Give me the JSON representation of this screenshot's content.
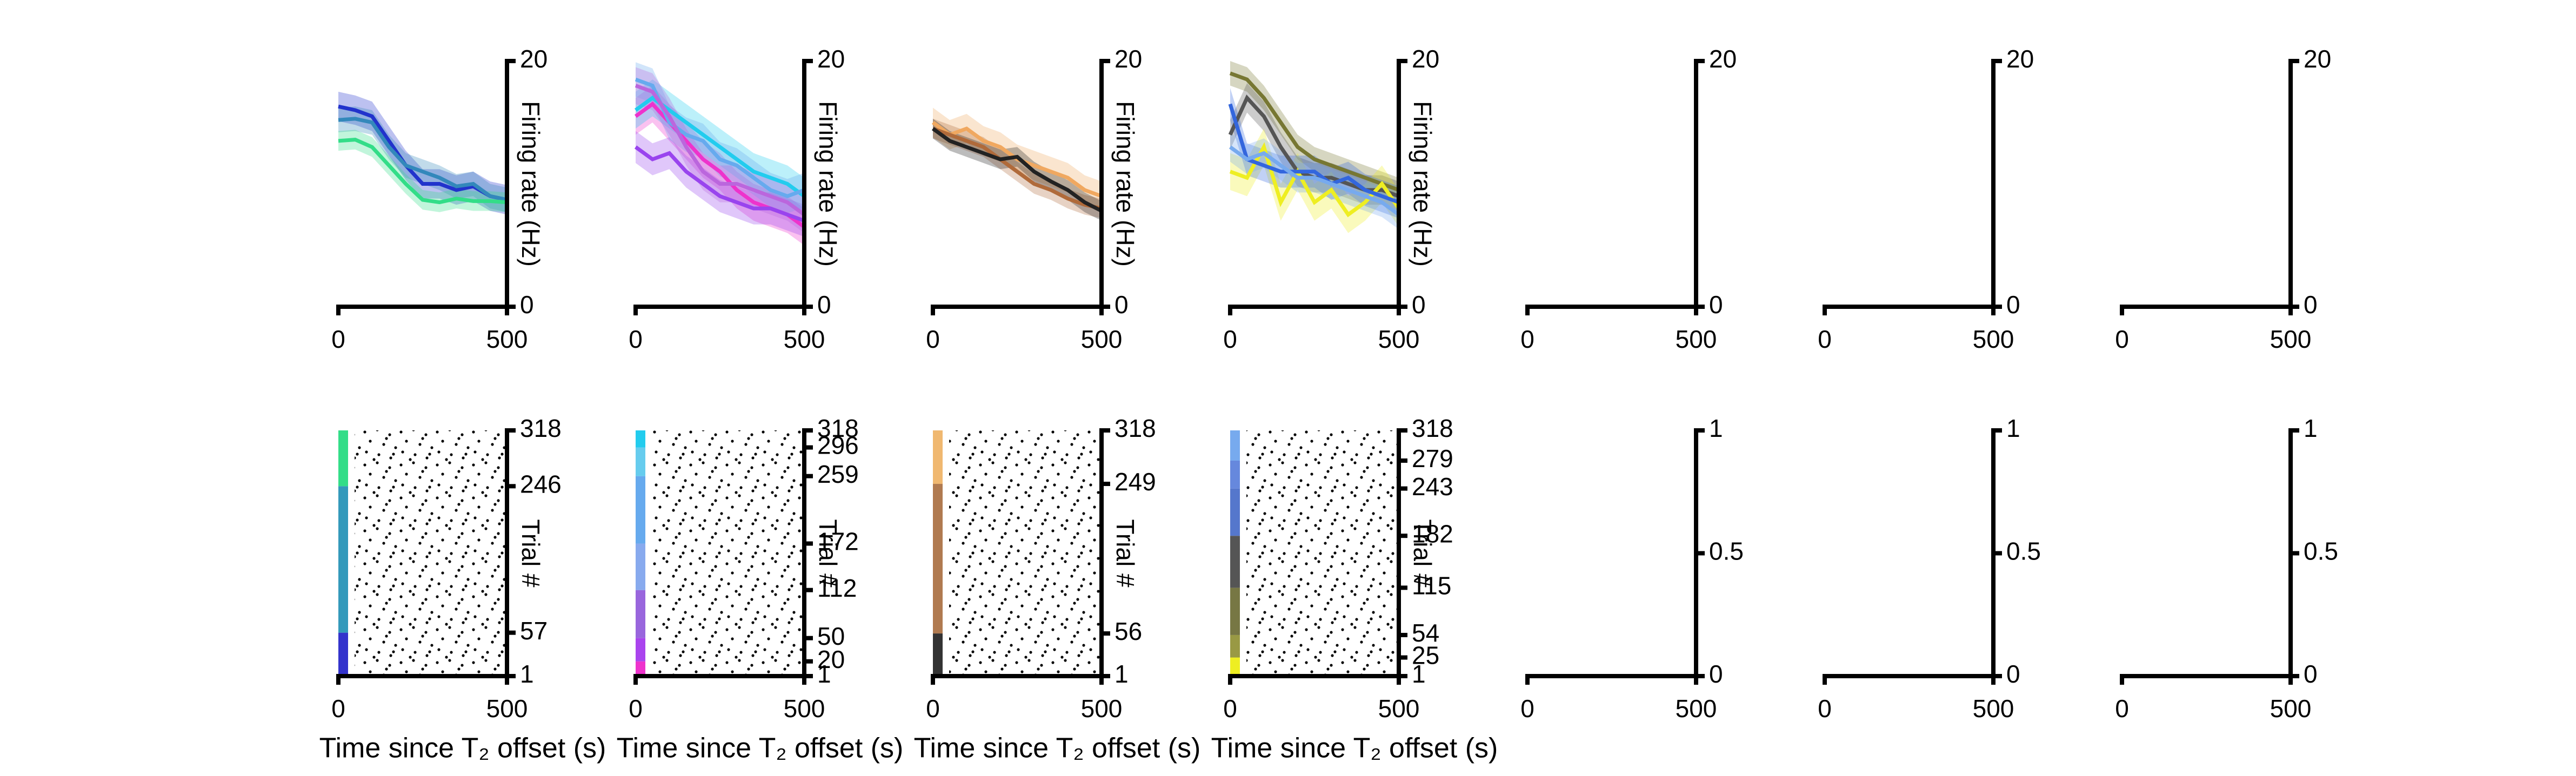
{
  "chart_data": [
    {
      "type": "line",
      "xlim": [
        0,
        500
      ],
      "xticks": [
        0,
        500
      ],
      "ylim": [
        0,
        20
      ],
      "yticks": [
        0,
        20
      ],
      "ylabel": "Firing rate (Hz)",
      "x": [
        0,
        50,
        100,
        150,
        200,
        250,
        300,
        350,
        400,
        450,
        500
      ],
      "series": [
        {
          "color": "#2233cc",
          "error": 1.2,
          "values": [
            16.3,
            16,
            15.5,
            13.5,
            11.5,
            10,
            10,
            9.5,
            9.8,
            9,
            8.7
          ]
        },
        {
          "color": "#3388bb",
          "error": 1,
          "values": [
            15.2,
            15.3,
            15,
            13,
            11.5,
            11,
            10.5,
            9.8,
            10,
            9,
            8.7
          ]
        },
        {
          "color": "#33dd88",
          "error": 0.8,
          "values": [
            13.5,
            13.6,
            13,
            11.5,
            10,
            8.7,
            8.5,
            8.8,
            8.6,
            8.6,
            8.5
          ]
        }
      ]
    },
    {
      "type": "line",
      "xlim": [
        0,
        500
      ],
      "xticks": [
        0,
        500
      ],
      "ylim": [
        0,
        20
      ],
      "yticks": [
        0,
        20
      ],
      "ylabel": "Firing rate (Hz)",
      "x": [
        0,
        50,
        100,
        150,
        200,
        250,
        300,
        350,
        400,
        450,
        500
      ],
      "series": [
        {
          "color": "#ee33cc",
          "error": 1.5,
          "values": [
            15.5,
            16.5,
            15,
            13.5,
            12,
            11,
            9.5,
            8.5,
            8,
            7.5,
            6.5
          ]
        },
        {
          "color": "#9944ee",
          "error": 1.3,
          "values": [
            13,
            12,
            12.5,
            11,
            10,
            9,
            8.5,
            8,
            8,
            7.5,
            7
          ]
        },
        {
          "color": "#22ccee",
          "error": 1.5,
          "values": [
            16,
            17,
            16,
            15,
            14,
            13,
            12,
            11,
            10.5,
            10,
            9
          ]
        },
        {
          "color": "#66aaee",
          "error": 1.4,
          "values": [
            18.5,
            18,
            15,
            14,
            13.5,
            12,
            11.5,
            10.5,
            9.5,
            9,
            9.5
          ]
        },
        {
          "color": "#bb66dd",
          "error": 1.5,
          "values": [
            18,
            17.5,
            15.5,
            13,
            11,
            10,
            10,
            9.5,
            9,
            8.5,
            7.5
          ]
        }
      ]
    },
    {
      "type": "line",
      "xlim": [
        0,
        500
      ],
      "xticks": [
        0,
        500
      ],
      "ylim": [
        0,
        20
      ],
      "yticks": [
        0,
        20
      ],
      "ylabel": "Firing rate (Hz)",
      "x": [
        0,
        50,
        100,
        150,
        200,
        250,
        300,
        350,
        400,
        450,
        500
      ],
      "series": [
        {
          "color": "#f0a860",
          "error": 1.2,
          "values": [
            15,
            14,
            14.5,
            13.5,
            13,
            12,
            11.5,
            11,
            10.5,
            9.5,
            9
          ]
        },
        {
          "color": "#b06a3a",
          "error": 0.8,
          "values": [
            14.5,
            14,
            13.5,
            13,
            12,
            11,
            10,
            9.5,
            8.8,
            8.3,
            8
          ]
        },
        {
          "color": "#222222",
          "error": 0.8,
          "values": [
            14.5,
            13.5,
            13,
            12.5,
            12,
            12.2,
            11,
            10.2,
            9.5,
            8.5,
            7.8
          ]
        }
      ]
    },
    {
      "type": "line",
      "xlim": [
        0,
        500
      ],
      "xticks": [
        0,
        500
      ],
      "ylim": [
        0,
        20
      ],
      "yticks": [
        0,
        20
      ],
      "ylabel": "Firing rate (Hz)",
      "x": [
        0,
        50,
        100,
        150,
        200,
        250,
        300,
        350,
        400,
        450,
        500
      ],
      "series": [
        {
          "color": "#777733",
          "error": 1,
          "values": [
            19,
            18.5,
            17,
            15,
            13,
            12,
            11.5,
            11,
            10.5,
            10,
            9.5
          ]
        },
        {
          "color": "#555555",
          "error": 1.2,
          "values": [
            14,
            17,
            15.5,
            13,
            11,
            10.5,
            10.5,
            10,
            9.5,
            9.5,
            9
          ]
        },
        {
          "color": "#eeee22",
          "error": 1.5,
          "values": [
            11,
            10.5,
            13,
            8.5,
            11,
            8.5,
            9.5,
            7.5,
            8.5,
            10,
            8
          ]
        },
        {
          "color": "#3366dd",
          "error": 1.3,
          "values": [
            16.5,
            12,
            11.5,
            11,
            11,
            11,
            10,
            10.5,
            9.5,
            9,
            8.5
          ]
        },
        {
          "color": "#77aaee",
          "error": 1.2,
          "values": [
            13,
            12,
            12.5,
            11.5,
            10.5,
            10.5,
            10,
            9.5,
            9,
            8.5,
            7.5
          ]
        }
      ]
    },
    {
      "type": "line",
      "xlim": [
        0,
        500
      ],
      "xticks": [
        0,
        500
      ],
      "ylim": [
        0,
        20
      ],
      "yticks": [
        0,
        20
      ]
    },
    {
      "type": "line",
      "xlim": [
        0,
        500
      ],
      "xticks": [
        0,
        500
      ],
      "ylim": [
        0,
        20
      ],
      "yticks": [
        0,
        20
      ]
    },
    {
      "type": "line",
      "xlim": [
        0,
        500
      ],
      "xticks": [
        0,
        500
      ],
      "ylim": [
        0,
        20
      ],
      "yticks": [
        0,
        20
      ]
    },
    {
      "type": "raster",
      "xlim": [
        0,
        500
      ],
      "xticks": [
        0,
        500
      ],
      "ylim": [
        1,
        318
      ],
      "yticks": [
        1,
        57,
        246,
        318
      ],
      "ylabel": "Trial #",
      "xlabel": "Time since T₂ offset (s)",
      "group_colors": [
        "#3333cc",
        "#3399bb",
        "#33dd88"
      ]
    },
    {
      "type": "raster",
      "xlim": [
        0,
        500
      ],
      "xticks": [
        0,
        500
      ],
      "ylim": [
        1,
        318
      ],
      "yticks": [
        1,
        20,
        50,
        112,
        172,
        259,
        296,
        318
      ],
      "ylabel": "Trial #",
      "xlabel": "Time since T₂ offset (s)",
      "group_colors": [
        "#ee33cc",
        "#aa44ee",
        "#9966dd",
        "#88aaee",
        "#66aaee",
        "#66ccee",
        "#22ccee"
      ]
    },
    {
      "type": "raster",
      "xlim": [
        0,
        500
      ],
      "xticks": [
        0,
        500
      ],
      "ylim": [
        1,
        318
      ],
      "yticks": [
        1,
        56,
        249,
        318
      ],
      "ylabel": "Trial #",
      "xlabel": "Time since T₂ offset (s)",
      "group_colors": [
        "#333333",
        "#b07a50",
        "#f0b870"
      ]
    },
    {
      "type": "raster",
      "xlim": [
        0,
        500
      ],
      "xticks": [
        0,
        500
      ],
      "ylim": [
        1,
        318
      ],
      "yticks": [
        1,
        25,
        54,
        115,
        182,
        243,
        279,
        318
      ],
      "ylabel": "Trial #",
      "xlabel": "Time since T₂ offset (s)",
      "group_colors": [
        "#eeee22",
        "#999944",
        "#777744",
        "#555555",
        "#5577cc",
        "#6688dd",
        "#77aaee"
      ]
    },
    {
      "type": "line",
      "xlim": [
        0,
        500
      ],
      "xticks": [
        0,
        500
      ],
      "ylim": [
        0,
        1
      ],
      "yticks": [
        0,
        0.5,
        1
      ]
    },
    {
      "type": "line",
      "xlim": [
        0,
        500
      ],
      "xticks": [
        0,
        500
      ],
      "ylim": [
        0,
        1
      ],
      "yticks": [
        0,
        0.5,
        1
      ]
    },
    {
      "type": "line",
      "xlim": [
        0,
        500
      ],
      "xticks": [
        0,
        500
      ],
      "ylim": [
        0,
        1
      ],
      "yticks": [
        0,
        0.5,
        1
      ]
    }
  ]
}
